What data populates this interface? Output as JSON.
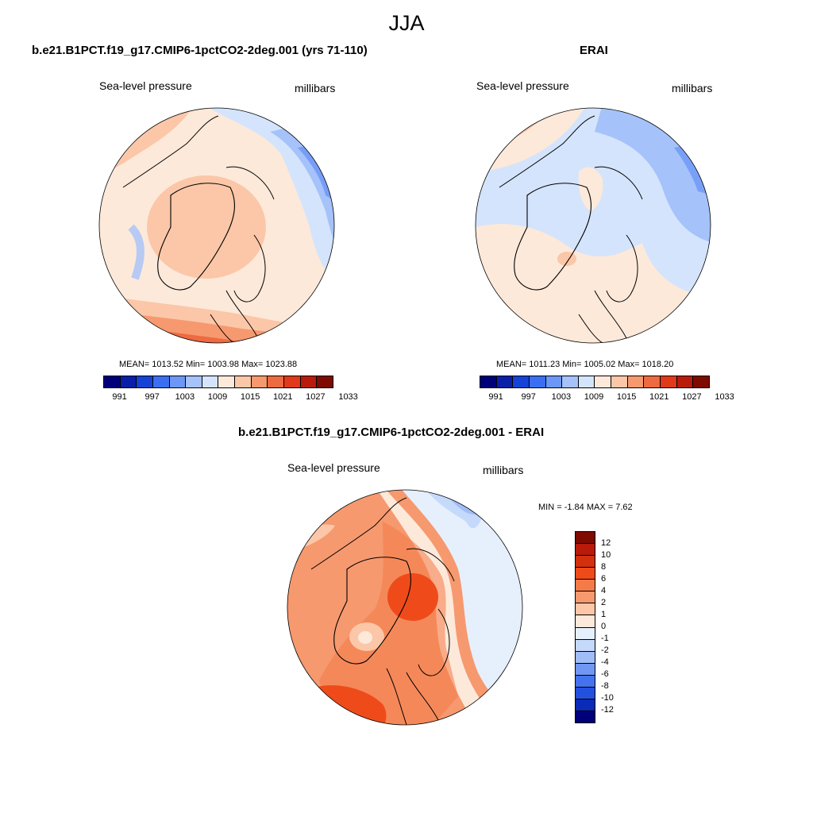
{
  "title": "JJA",
  "panels": [
    {
      "title": "b.e21.B1PCT.f19_g17.CMIP6-1pctCO2-2deg.001 (yrs 71-110)",
      "variable": "Sea-level pressure",
      "units": "millibars",
      "stats": "MEAN= 1013.52  Min= 1003.98  Max= 1023.88"
    },
    {
      "title": "ERAI",
      "variable": "Sea-level pressure",
      "units": "millibars",
      "stats": "MEAN= 1011.23  Min= 1005.02  Max= 1018.20"
    },
    {
      "title": "b.e21.B1PCT.f19_g17.CMIP6-1pctCO2-2deg.001 - ERAI",
      "variable": "Sea-level pressure",
      "units": "millibars",
      "stats": "MIN =  -1.84 MAX =   7.62"
    }
  ],
  "colorbar_abs": {
    "labels": [
      "991",
      "997",
      "1003",
      "1009",
      "1015",
      "1021",
      "1027",
      "1033"
    ],
    "colors": [
      "#00007a",
      "#0a1fa8",
      "#1543d6",
      "#3a6ff2",
      "#6d97f7",
      "#a5c2fa",
      "#d4e4fc",
      "#fde9da",
      "#fbc7a8",
      "#f6996f",
      "#ee6a40",
      "#e03a1a",
      "#b81b0a",
      "#7e0a00"
    ]
  },
  "colorbar_diff": {
    "labels": [
      "12",
      "10",
      "8",
      "6",
      "4",
      "2",
      "1",
      "0",
      "-1",
      "-2",
      "-4",
      "-6",
      "-8",
      "-10",
      "-12"
    ],
    "colors": [
      "#7e0a00",
      "#b81b0a",
      "#d3300e",
      "#ef4b1a",
      "#f47a47",
      "#f6996f",
      "#fbc7a8",
      "#fde9da",
      "#e6f0fd",
      "#c5d9fb",
      "#a0bdf8",
      "#7197f4",
      "#4572ee",
      "#2450e0",
      "#0a2ab8",
      "#00007a"
    ]
  }
}
